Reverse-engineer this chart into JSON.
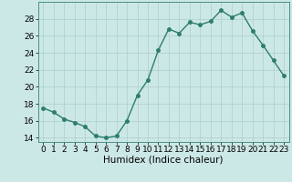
{
  "x": [
    0,
    1,
    2,
    3,
    4,
    5,
    6,
    7,
    8,
    9,
    10,
    11,
    12,
    13,
    14,
    15,
    16,
    17,
    18,
    19,
    20,
    21,
    22,
    23
  ],
  "y": [
    17.5,
    17.0,
    16.2,
    15.8,
    15.3,
    14.2,
    14.0,
    14.2,
    16.0,
    19.0,
    20.8,
    24.3,
    26.8,
    26.3,
    27.6,
    27.3,
    27.7,
    29.0,
    28.2,
    28.7,
    26.6,
    24.9,
    23.1,
    21.3
  ],
  "line_color": "#2e7d6e",
  "marker_color": "#2e7d6e",
  "bg_color": "#cce8e6",
  "grid_color": "#aacfcc",
  "xlabel": "Humidex (Indice chaleur)",
  "ylim": [
    13.5,
    30
  ],
  "xlim": [
    -0.5,
    23.5
  ],
  "yticks": [
    14,
    16,
    18,
    20,
    22,
    24,
    26,
    28
  ],
  "xticks": [
    0,
    1,
    2,
    3,
    4,
    5,
    6,
    7,
    8,
    9,
    10,
    11,
    12,
    13,
    14,
    15,
    16,
    17,
    18,
    19,
    20,
    21,
    22,
    23
  ],
  "tick_fontsize": 6.5,
  "xlabel_fontsize": 7.5,
  "linewidth": 1.0,
  "markersize": 2.5
}
